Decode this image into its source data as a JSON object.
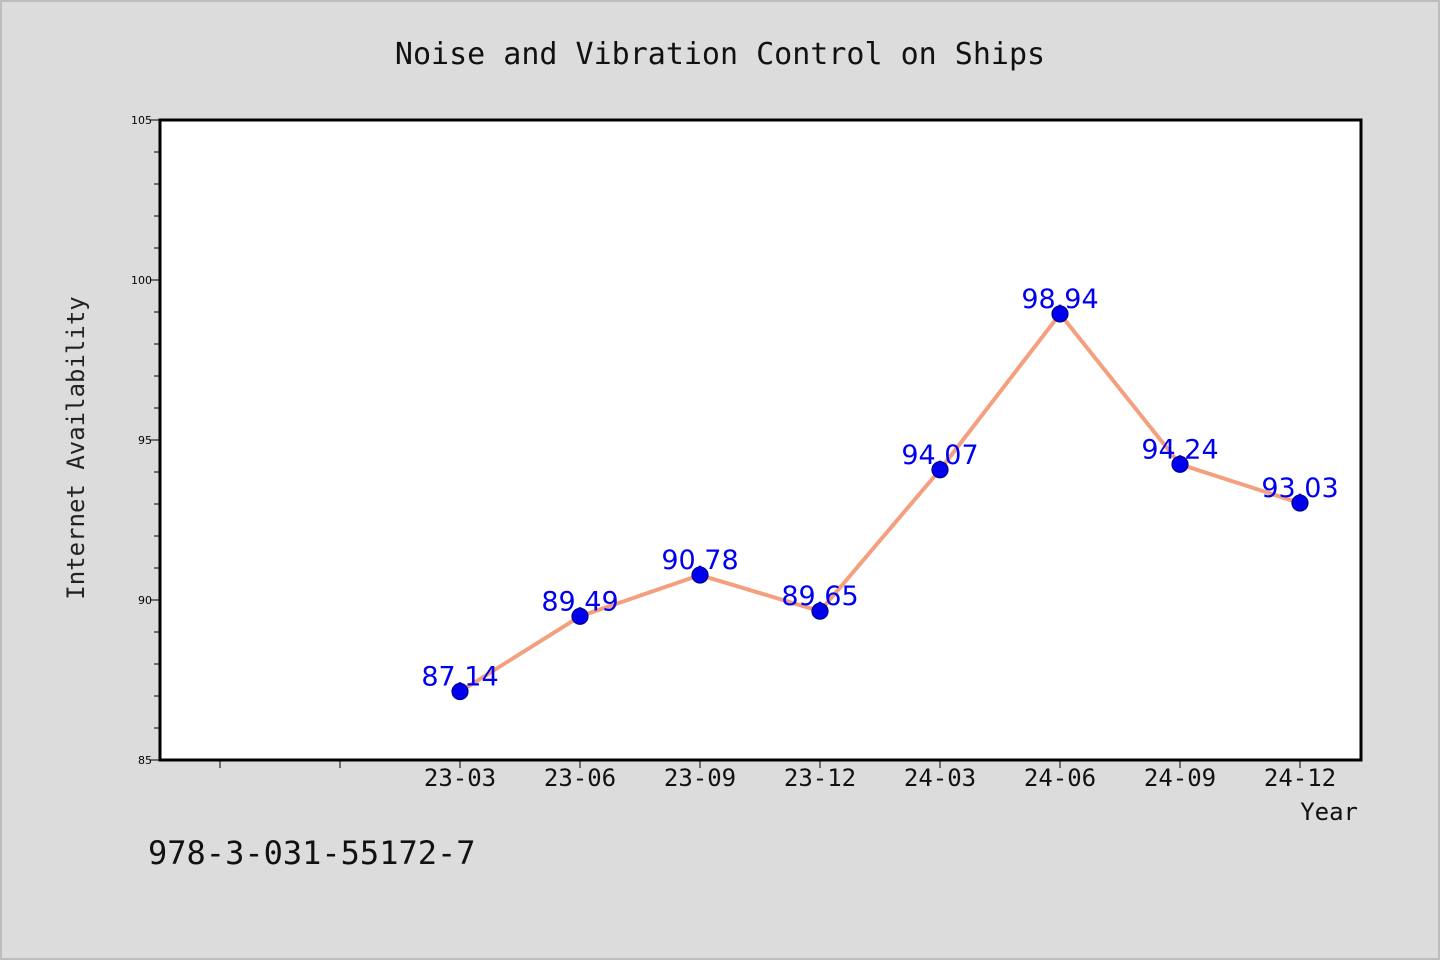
{
  "chart_data": {
    "type": "line",
    "title": "Noise and Vibration Control on Ships",
    "xlabel": "Year",
    "ylabel": "Internet Availability",
    "categories": [
      "23-03",
      "23-06",
      "23-09",
      "23-12",
      "24-03",
      "24-06",
      "24-09",
      "24-12"
    ],
    "values": [
      87.14,
      89.49,
      90.78,
      89.65,
      94.07,
      98.94,
      94.24,
      93.03
    ],
    "value_labels": [
      "87.14",
      "89.49",
      "90.78",
      "89.65",
      "94.07",
      "98.94",
      "94.24",
      "93.03"
    ],
    "ylim": [
      85,
      105
    ],
    "yticks": [
      "85",
      "90",
      "95",
      "100",
      "105"
    ],
    "grid": false,
    "line_color": "#f4a07f",
    "marker_color": "#0000ee",
    "label_color": "#0000ee",
    "annotation": "978-3-031-55172-7"
  }
}
